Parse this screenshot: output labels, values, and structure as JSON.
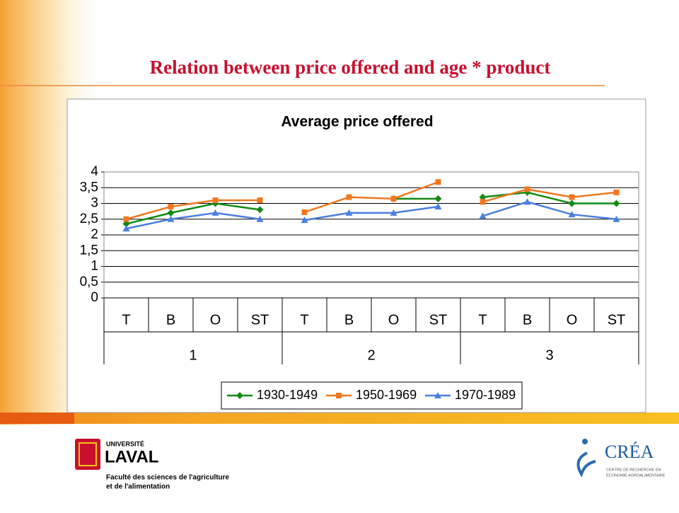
{
  "slide_title": "Relation between price offered and age * product",
  "chart_data": {
    "type": "line",
    "title": "Average price offered",
    "categories": [
      "T",
      "B",
      "O",
      "ST",
      "T",
      "B",
      "O",
      "ST",
      "T",
      "B",
      "O",
      "ST"
    ],
    "groups": [
      "1",
      "2",
      "3"
    ],
    "series": [
      {
        "name": "1930-1949",
        "color": "#138a13",
        "marker": "diamond",
        "values": [
          2.35,
          2.7,
          3.0,
          2.8,
          null,
          null,
          3.15,
          3.15,
          3.2,
          3.35,
          3.0,
          3.0
        ]
      },
      {
        "name": "1950-1969",
        "color": "#f07820",
        "marker": "square",
        "values": [
          2.5,
          2.9,
          3.1,
          3.1,
          2.72,
          3.2,
          3.15,
          3.68,
          3.05,
          3.45,
          3.2,
          3.35
        ]
      },
      {
        "name": "1970-1989",
        "color": "#4a7fe0",
        "marker": "triangle",
        "values": [
          2.2,
          2.5,
          2.7,
          2.5,
          2.47,
          2.7,
          2.7,
          2.9,
          2.6,
          3.05,
          2.65,
          2.5
        ]
      }
    ],
    "ylim": [
      0,
      4
    ],
    "yticks": [
      0,
      {
        "value": 0.5,
        "label": "0,5"
      },
      1,
      {
        "value": 1.5,
        "label": "1,5"
      },
      2,
      {
        "value": 2.5,
        "label": "2,5"
      },
      3,
      {
        "value": 3.5,
        "label": "3,5"
      },
      4
    ],
    "grid": true,
    "legend": "bottom"
  },
  "footer": {
    "univ_top": "UNIVERSITÉ",
    "univ_name": "LAVAL",
    "faculty_1": "Faculté des sciences de l'agriculture",
    "faculty_2": "et de l'alimentation",
    "crea": "CRÉA",
    "crea_1": "CENTRE DE RECHERCHE EN",
    "crea_2": "ÉCONOMIE AGROALIMENTAIRE"
  }
}
